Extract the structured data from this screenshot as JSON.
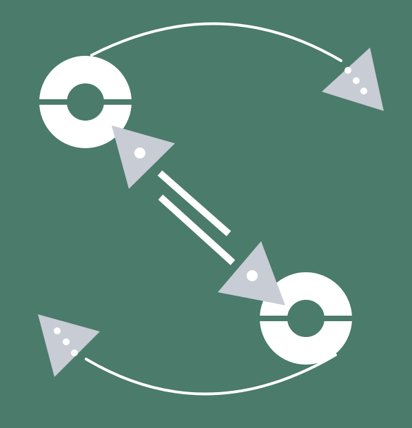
{
  "colors": {
    "background": "#4a7b6b",
    "node": "#ffffff",
    "arrowhead": "#c8ccd4",
    "dot": "#ffffff",
    "connector": "#ffffff"
  },
  "nodes": [
    {
      "id": "top-left-ring",
      "icon": "ring-split-icon"
    },
    {
      "id": "bottom-right-ring",
      "icon": "ring-split-icon"
    }
  ],
  "arrowheads": [
    {
      "id": "top-right",
      "dots": 3
    },
    {
      "id": "center-upper",
      "dots": 1
    },
    {
      "id": "center-lower",
      "dots": 1
    },
    {
      "id": "bottom-left",
      "dots": 3
    }
  ],
  "connectors": [
    {
      "id": "top-arc",
      "style": "curved"
    },
    {
      "id": "bottom-arc",
      "style": "curved"
    },
    {
      "id": "center-double-line",
      "style": "double-straight"
    }
  ]
}
